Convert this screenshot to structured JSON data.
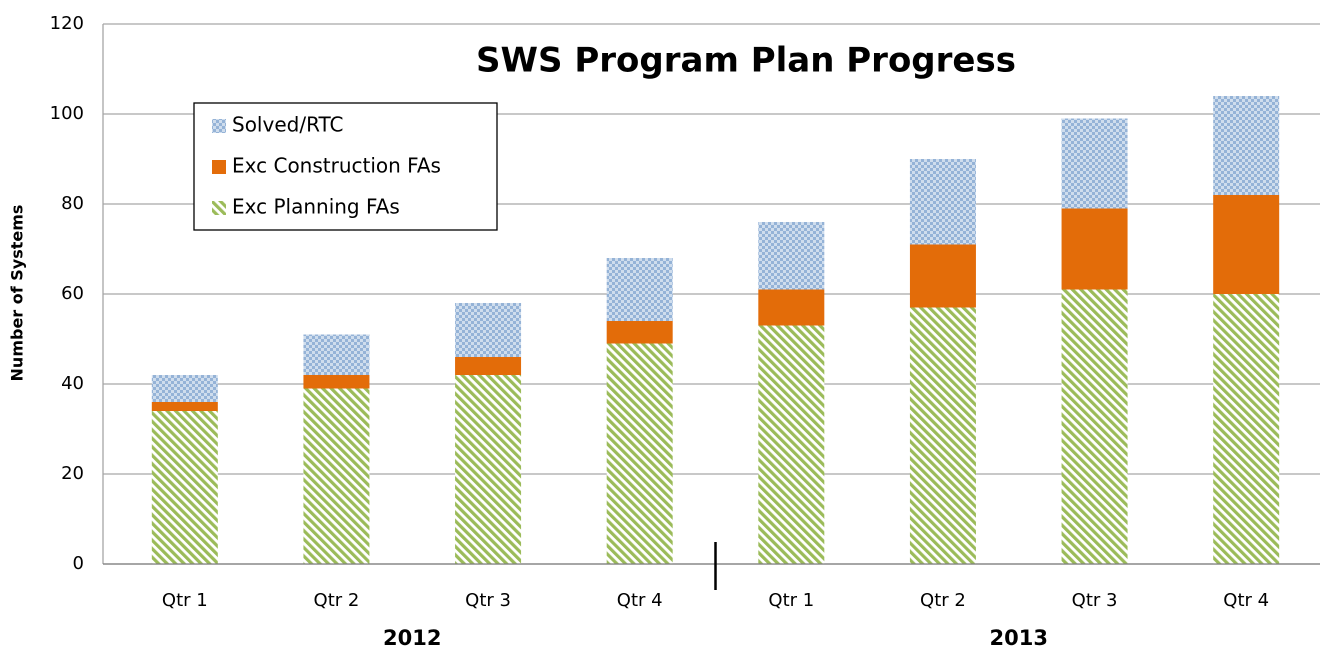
{
  "chart_data": {
    "type": "stacked_bar",
    "title": "SWS Program Plan Progress",
    "y_label": "Number of Systems",
    "categories": [
      "Qtr 1",
      "Qtr 2",
      "Qtr 3",
      "Qtr 4",
      "Qtr 1",
      "Qtr 2",
      "Qtr 3",
      "Qtr 4"
    ],
    "groups": [
      "2012",
      "2013"
    ],
    "series": [
      {
        "name": "Exc Planning FAs",
        "color": "#9bbb59",
        "pattern": "diagonal",
        "values": [
          34,
          39,
          42,
          49,
          53,
          57,
          61,
          60
        ]
      },
      {
        "name": "Exc Construction FAs",
        "color": "#e36c09",
        "pattern": "solid",
        "values": [
          2,
          3,
          4,
          5,
          8,
          14,
          18,
          22
        ]
      },
      {
        "name": "Solved/RTC",
        "color": "#95b3d7",
        "pattern": "dots",
        "values": [
          6,
          9,
          12,
          14,
          15,
          19,
          20,
          22
        ]
      }
    ],
    "ylim": [
      0,
      120
    ],
    "yticks": [
      0,
      20,
      40,
      60,
      80,
      100,
      120
    ],
    "grid": true
  }
}
